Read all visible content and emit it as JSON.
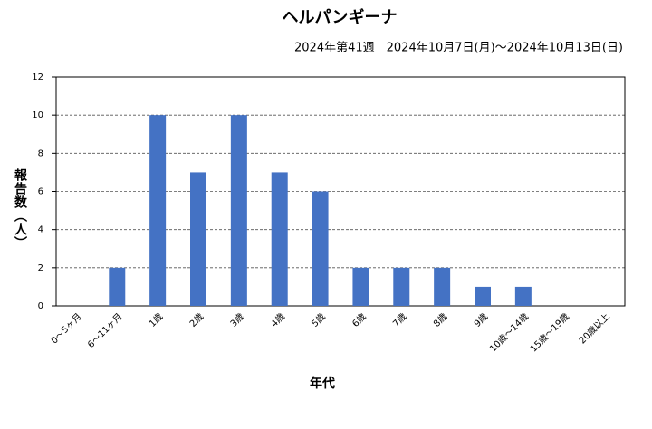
{
  "chart_data": {
    "type": "bar",
    "title": "ヘルパンギーナ",
    "subtitle": "2024年第41週　2024年10月7日(月)～2024年10月13日(日)",
    "x_label": "年代",
    "y_label": "報告数（人）",
    "categories": [
      "0～5ヶ月",
      "6～11ヶ月",
      "1歳",
      "2歳",
      "3歳",
      "4歳",
      "5歳",
      "6歳",
      "7歳",
      "8歳",
      "9歳",
      "10歳～14歳",
      "15歳～19歳",
      "20歳以上"
    ],
    "values": [
      0,
      2,
      10,
      7,
      10,
      7,
      6,
      2,
      2,
      2,
      1,
      1,
      0,
      0
    ],
    "color": "#4472c4",
    "ylim": [
      0,
      12
    ],
    "yticks": [
      0,
      2,
      4,
      6,
      8,
      10,
      12
    ],
    "grid": true
  }
}
